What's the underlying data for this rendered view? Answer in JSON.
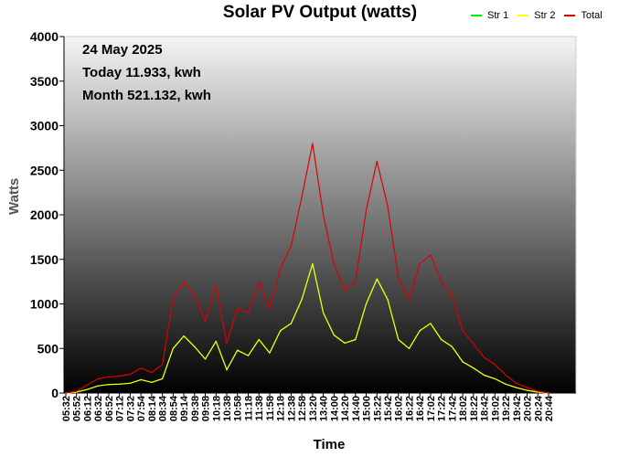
{
  "chart_data": {
    "type": "line",
    "title": "Solar PV Output (watts)",
    "xlabel": "Time",
    "ylabel": "Watts",
    "ylim": [
      0,
      4000
    ],
    "yticks": [
      0,
      500,
      1000,
      1500,
      2000,
      2500,
      3000,
      3500,
      4000
    ],
    "grid": false,
    "legend_position": "top-right",
    "info": {
      "date": "24 May 2025",
      "today": "Today 11.933, kwh",
      "month": "Month 521.132, kwh"
    },
    "x": [
      "05:32",
      "05:52",
      "06:12",
      "06:32",
      "06:52",
      "07:12",
      "07:32",
      "07:54",
      "08:14",
      "08:34",
      "08:54",
      "09:14",
      "09:38",
      "09:58",
      "10:18",
      "10:38",
      "10:58",
      "11:18",
      "11:38",
      "11:58",
      "12:18",
      "12:38",
      "12:58",
      "13:20",
      "13:40",
      "14:00",
      "14:20",
      "14:40",
      "15:00",
      "15:22",
      "15:42",
      "16:02",
      "16:22",
      "16:42",
      "17:02",
      "17:22",
      "17:42",
      "18:02",
      "18:22",
      "18:42",
      "19:02",
      "19:22",
      "19:42",
      "20:02",
      "20:24",
      "20:44"
    ],
    "series": [
      {
        "name": "Str 1",
        "color": "#00dd00",
        "values": [
          0,
          10,
          40,
          80,
          95,
          100,
          110,
          150,
          120,
          160,
          500,
          640,
          520,
          380,
          580,
          260,
          480,
          420,
          600,
          450,
          700,
          780,
          1050,
          1450,
          900,
          650,
          560,
          600,
          1000,
          1280,
          1050,
          600,
          500,
          700,
          780,
          600,
          520,
          350,
          280,
          200,
          160,
          100,
          60,
          30,
          10,
          0
        ]
      },
      {
        "name": "Str 2",
        "color": "#ffff00",
        "values": [
          0,
          10,
          40,
          80,
          95,
          100,
          110,
          150,
          120,
          160,
          500,
          640,
          520,
          380,
          580,
          260,
          480,
          420,
          600,
          450,
          700,
          780,
          1050,
          1450,
          900,
          650,
          560,
          600,
          1000,
          1280,
          1050,
          600,
          500,
          700,
          780,
          600,
          520,
          350,
          280,
          200,
          160,
          100,
          60,
          30,
          10,
          0
        ]
      },
      {
        "name": "Total",
        "color": "#dd0000",
        "values": [
          0,
          20,
          90,
          160,
          180,
          190,
          210,
          280,
          230,
          320,
          1050,
          1250,
          1100,
          800,
          1200,
          560,
          950,
          900,
          1250,
          950,
          1400,
          1650,
          2200,
          2800,
          2000,
          1450,
          1150,
          1250,
          2050,
          2600,
          2100,
          1300,
          1050,
          1450,
          1550,
          1250,
          1100,
          700,
          550,
          400,
          320,
          200,
          110,
          60,
          20,
          0
        ]
      }
    ]
  }
}
